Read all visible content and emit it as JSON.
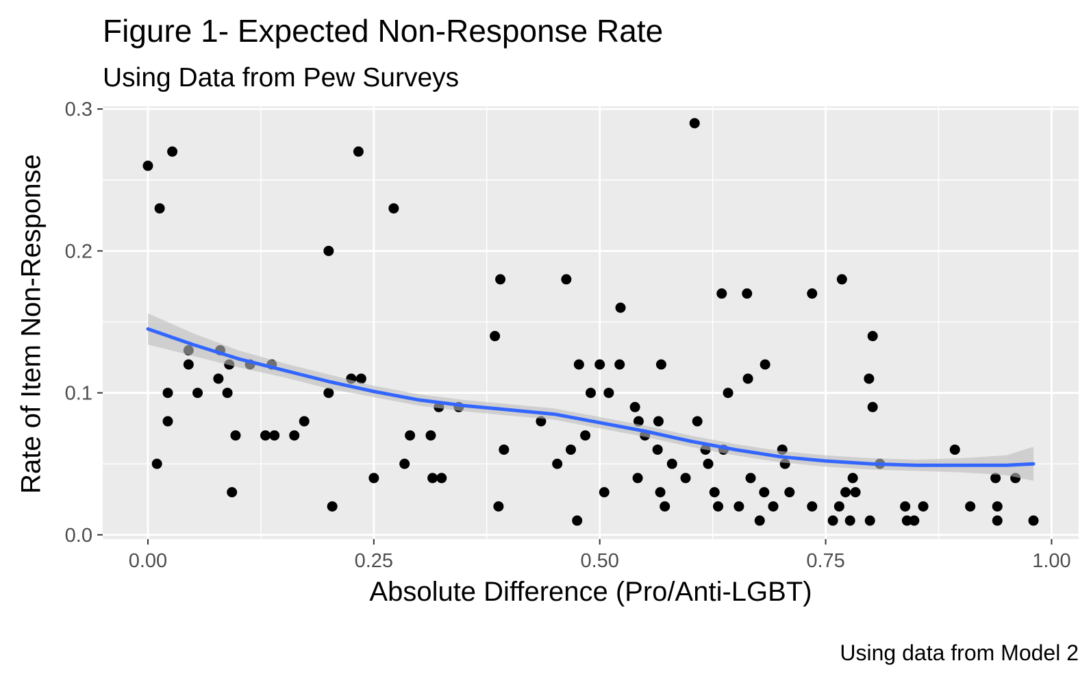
{
  "chart_data": {
    "type": "scatter",
    "title": "Figure 1- Expected Non-Response Rate",
    "subtitle": "Using Data from Pew Surveys",
    "caption": "Using data from Model 2",
    "xlabel": "Absolute Difference (Pro/Anti-LGBT)",
    "ylabel": "Rate of Item Non-Response",
    "xlim": [
      -0.05,
      1.03
    ],
    "ylim": [
      -0.003,
      0.302
    ],
    "x_ticks": [
      0.0,
      0.25,
      0.5,
      0.75,
      1.0
    ],
    "x_tick_labels": [
      "0.00",
      "0.25",
      "0.50",
      "0.75",
      "1.00"
    ],
    "y_ticks": [
      0.0,
      0.1,
      0.2,
      0.3
    ],
    "y_tick_labels": [
      "0.0",
      "0.1",
      "0.2",
      "0.3"
    ],
    "grid": true,
    "colors": {
      "panel": "#ebebeb",
      "grid": "#ffffff",
      "points": "#000000",
      "smooth_line": "#3366ff",
      "ribbon": "#bdbdbd"
    },
    "points": [
      {
        "x": 0.0,
        "y": 0.26
      },
      {
        "x": 0.01,
        "y": 0.05
      },
      {
        "x": 0.013,
        "y": 0.23
      },
      {
        "x": 0.022,
        "y": 0.1
      },
      {
        "x": 0.022,
        "y": 0.08
      },
      {
        "x": 0.027,
        "y": 0.27
      },
      {
        "x": 0.045,
        "y": 0.13
      },
      {
        "x": 0.045,
        "y": 0.12
      },
      {
        "x": 0.055,
        "y": 0.1
      },
      {
        "x": 0.078,
        "y": 0.11
      },
      {
        "x": 0.08,
        "y": 0.13
      },
      {
        "x": 0.088,
        "y": 0.1
      },
      {
        "x": 0.09,
        "y": 0.12
      },
      {
        "x": 0.093,
        "y": 0.03
      },
      {
        "x": 0.097,
        "y": 0.07
      },
      {
        "x": 0.113,
        "y": 0.12
      },
      {
        "x": 0.13,
        "y": 0.07
      },
      {
        "x": 0.137,
        "y": 0.12
      },
      {
        "x": 0.14,
        "y": 0.07
      },
      {
        "x": 0.162,
        "y": 0.07
      },
      {
        "x": 0.173,
        "y": 0.08
      },
      {
        "x": 0.2,
        "y": 0.2
      },
      {
        "x": 0.2,
        "y": 0.1
      },
      {
        "x": 0.204,
        "y": 0.02
      },
      {
        "x": 0.225,
        "y": 0.11
      },
      {
        "x": 0.233,
        "y": 0.27
      },
      {
        "x": 0.236,
        "y": 0.11
      },
      {
        "x": 0.25,
        "y": 0.04
      },
      {
        "x": 0.272,
        "y": 0.23
      },
      {
        "x": 0.284,
        "y": 0.05
      },
      {
        "x": 0.29,
        "y": 0.07
      },
      {
        "x": 0.313,
        "y": 0.07
      },
      {
        "x": 0.315,
        "y": 0.04
      },
      {
        "x": 0.322,
        "y": 0.09
      },
      {
        "x": 0.325,
        "y": 0.04
      },
      {
        "x": 0.344,
        "y": 0.09
      },
      {
        "x": 0.384,
        "y": 0.14
      },
      {
        "x": 0.388,
        "y": 0.02
      },
      {
        "x": 0.39,
        "y": 0.18
      },
      {
        "x": 0.394,
        "y": 0.06
      },
      {
        "x": 0.435,
        "y": 0.08
      },
      {
        "x": 0.453,
        "y": 0.05
      },
      {
        "x": 0.463,
        "y": 0.18
      },
      {
        "x": 0.468,
        "y": 0.06
      },
      {
        "x": 0.475,
        "y": 0.01
      },
      {
        "x": 0.477,
        "y": 0.12
      },
      {
        "x": 0.484,
        "y": 0.07
      },
      {
        "x": 0.49,
        "y": 0.1
      },
      {
        "x": 0.5,
        "y": 0.12
      },
      {
        "x": 0.505,
        "y": 0.03
      },
      {
        "x": 0.51,
        "y": 0.1
      },
      {
        "x": 0.522,
        "y": 0.12
      },
      {
        "x": 0.523,
        "y": 0.16
      },
      {
        "x": 0.539,
        "y": 0.09
      },
      {
        "x": 0.542,
        "y": 0.04
      },
      {
        "x": 0.543,
        "y": 0.08
      },
      {
        "x": 0.55,
        "y": 0.07
      },
      {
        "x": 0.564,
        "y": 0.06
      },
      {
        "x": 0.565,
        "y": 0.08
      },
      {
        "x": 0.567,
        "y": 0.03
      },
      {
        "x": 0.568,
        "y": 0.12
      },
      {
        "x": 0.572,
        "y": 0.02
      },
      {
        "x": 0.58,
        "y": 0.05
      },
      {
        "x": 0.595,
        "y": 0.04
      },
      {
        "x": 0.605,
        "y": 0.29
      },
      {
        "x": 0.608,
        "y": 0.08
      },
      {
        "x": 0.617,
        "y": 0.06
      },
      {
        "x": 0.62,
        "y": 0.05
      },
      {
        "x": 0.627,
        "y": 0.03
      },
      {
        "x": 0.631,
        "y": 0.02
      },
      {
        "x": 0.635,
        "y": 0.17
      },
      {
        "x": 0.637,
        "y": 0.06
      },
      {
        "x": 0.642,
        "y": 0.1
      },
      {
        "x": 0.654,
        "y": 0.02
      },
      {
        "x": 0.663,
        "y": 0.17
      },
      {
        "x": 0.664,
        "y": 0.11
      },
      {
        "x": 0.667,
        "y": 0.04
      },
      {
        "x": 0.677,
        "y": 0.01
      },
      {
        "x": 0.682,
        "y": 0.03
      },
      {
        "x": 0.683,
        "y": 0.12
      },
      {
        "x": 0.692,
        "y": 0.02
      },
      {
        "x": 0.702,
        "y": 0.06
      },
      {
        "x": 0.705,
        "y": 0.05
      },
      {
        "x": 0.71,
        "y": 0.03
      },
      {
        "x": 0.735,
        "y": 0.17
      },
      {
        "x": 0.735,
        "y": 0.02
      },
      {
        "x": 0.758,
        "y": 0.01
      },
      {
        "x": 0.765,
        "y": 0.02
      },
      {
        "x": 0.768,
        "y": 0.18
      },
      {
        "x": 0.772,
        "y": 0.03
      },
      {
        "x": 0.777,
        "y": 0.01
      },
      {
        "x": 0.78,
        "y": 0.04
      },
      {
        "x": 0.783,
        "y": 0.03
      },
      {
        "x": 0.798,
        "y": 0.11
      },
      {
        "x": 0.799,
        "y": 0.01
      },
      {
        "x": 0.802,
        "y": 0.14
      },
      {
        "x": 0.802,
        "y": 0.09
      },
      {
        "x": 0.81,
        "y": 0.05
      },
      {
        "x": 0.838,
        "y": 0.02
      },
      {
        "x": 0.84,
        "y": 0.01
      },
      {
        "x": 0.848,
        "y": 0.01
      },
      {
        "x": 0.858,
        "y": 0.02
      },
      {
        "x": 0.893,
        "y": 0.06
      },
      {
        "x": 0.91,
        "y": 0.02
      },
      {
        "x": 0.938,
        "y": 0.04
      },
      {
        "x": 0.94,
        "y": 0.02
      },
      {
        "x": 0.94,
        "y": 0.01
      },
      {
        "x": 0.96,
        "y": 0.04
      },
      {
        "x": 0.98,
        "y": 0.01
      }
    ],
    "smooth": {
      "x": [
        0.0,
        0.05,
        0.1,
        0.15,
        0.2,
        0.25,
        0.3,
        0.35,
        0.4,
        0.45,
        0.5,
        0.55,
        0.6,
        0.65,
        0.7,
        0.75,
        0.8,
        0.85,
        0.9,
        0.95,
        0.98
      ],
      "y": [
        0.145,
        0.134,
        0.124,
        0.116,
        0.108,
        0.101,
        0.095,
        0.091,
        0.088,
        0.085,
        0.079,
        0.073,
        0.066,
        0.06,
        0.055,
        0.052,
        0.05,
        0.049,
        0.049,
        0.049,
        0.05
      ],
      "lower": [
        0.134,
        0.126,
        0.118,
        0.111,
        0.103,
        0.097,
        0.091,
        0.087,
        0.084,
        0.081,
        0.075,
        0.069,
        0.062,
        0.056,
        0.051,
        0.048,
        0.046,
        0.045,
        0.044,
        0.042,
        0.038
      ],
      "upper": [
        0.156,
        0.142,
        0.13,
        0.121,
        0.113,
        0.105,
        0.099,
        0.095,
        0.092,
        0.089,
        0.083,
        0.077,
        0.07,
        0.064,
        0.059,
        0.056,
        0.054,
        0.053,
        0.054,
        0.056,
        0.062
      ]
    }
  }
}
